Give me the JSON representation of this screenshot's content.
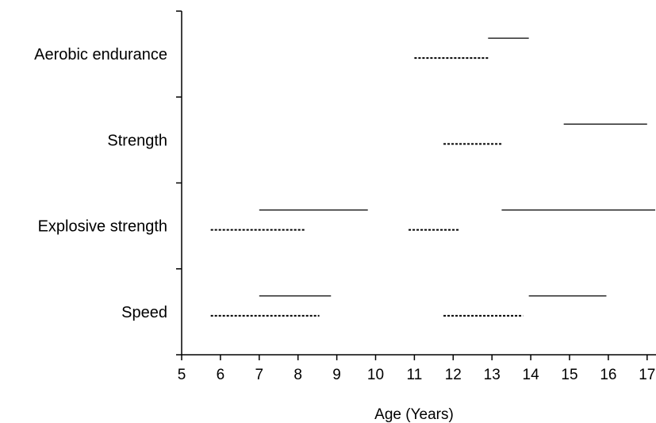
{
  "chart_data": {
    "type": "range",
    "title": "",
    "xlabel": "Age (Years)",
    "ylabel": "",
    "xlim": [
      5,
      17
    ],
    "x_ticks": [
      5,
      6,
      7,
      8,
      9,
      10,
      11,
      12,
      13,
      14,
      15,
      16,
      17
    ],
    "categories": [
      "Aerobic endurance",
      "Strength",
      "Explosive strength",
      "Speed"
    ],
    "grid": false,
    "series": [
      {
        "style": "solid",
        "ranges": [
          {
            "category": "Aerobic endurance",
            "start": 12.9,
            "end": 13.95
          },
          {
            "category": "Strength",
            "start": 14.85,
            "end": 17.0
          },
          {
            "category": "Explosive strength",
            "start": 7.0,
            "end": 9.8
          },
          {
            "category": "Explosive strength",
            "start": 13.25,
            "end": 17.3
          },
          {
            "category": "Speed",
            "start": 7.0,
            "end": 8.85
          },
          {
            "category": "Speed",
            "start": 13.95,
            "end": 15.95
          }
        ]
      },
      {
        "style": "dashed",
        "ranges": [
          {
            "category": "Aerobic endurance",
            "start": 11.0,
            "end": 12.9
          },
          {
            "category": "Strength",
            "start": 11.75,
            "end": 13.25
          },
          {
            "category": "Explosive strength",
            "start": 5.75,
            "end": 8.2
          },
          {
            "category": "Explosive strength",
            "start": 10.85,
            "end": 12.15
          },
          {
            "category": "Speed",
            "start": 5.75,
            "end": 8.55
          },
          {
            "category": "Speed",
            "start": 11.75,
            "end": 13.8
          }
        ]
      }
    ]
  }
}
